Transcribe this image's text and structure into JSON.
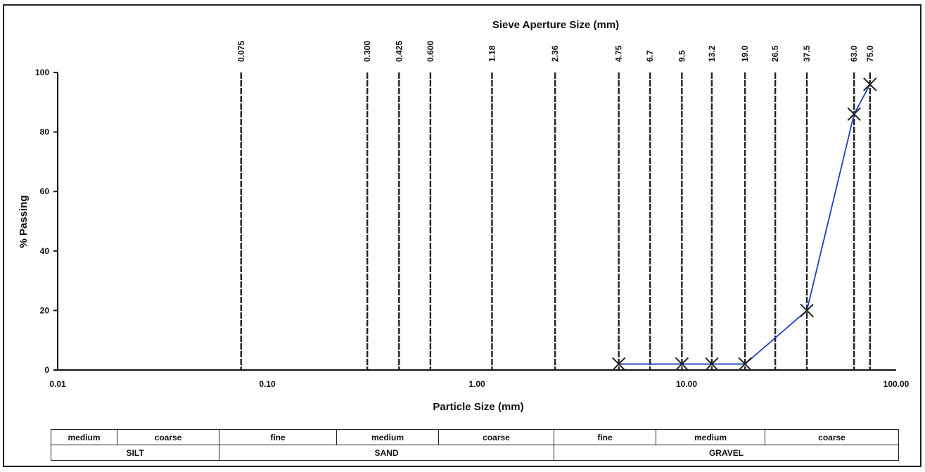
{
  "chart_data": {
    "type": "line",
    "title": "Sieve Aperture Size (mm)",
    "xlabel": "Particle Size (mm)",
    "ylabel": "% Passing",
    "xscale": "log",
    "xlim": [
      0.01,
      100
    ],
    "ylim": [
      0,
      100
    ],
    "x_tick_values": [
      0.01,
      0.1,
      1,
      10,
      100
    ],
    "x_tick_labels": [
      "0.01",
      "0.10",
      "1.00",
      "10.00",
      "100.00"
    ],
    "y_ticks": [
      0,
      20,
      40,
      60,
      80,
      100
    ],
    "y_tick_labels": [
      "0",
      "20",
      "40",
      "60",
      "80",
      "100"
    ],
    "grid": false,
    "sieve_sizes": [
      0.075,
      0.3,
      0.425,
      0.6,
      1.18,
      2.36,
      4.75,
      6.7,
      9.5,
      13.2,
      19.0,
      26.5,
      37.5,
      63.0,
      75.0
    ],
    "sieve_labels": [
      "0.075",
      "0.300",
      "0.425",
      "0.600",
      "1.18",
      "2.36",
      "4.75",
      "6.7",
      "9.5",
      "13.2",
      "19.0",
      "26.5",
      "37.5",
      "63.0",
      "75.0"
    ],
    "series": [
      {
        "color": "#1f3fbf",
        "marker": "x",
        "x": [
          4.75,
          9.5,
          13.2,
          19.0,
          37.5,
          63.0,
          75.0
        ],
        "y": [
          2,
          2,
          2,
          2,
          20,
          86,
          96
        ]
      }
    ]
  },
  "classification": {
    "sub_row": [
      {
        "label": "medium"
      },
      {
        "label": "coarse"
      },
      {
        "label": "fine"
      },
      {
        "label": "medium"
      },
      {
        "label": "coarse"
      },
      {
        "label": "fine"
      },
      {
        "label": "medium"
      },
      {
        "label": "coarse"
      }
    ],
    "main_row": [
      {
        "label": "SILT"
      },
      {
        "label": "SAND"
      },
      {
        "label": "GRAVEL"
      }
    ]
  },
  "colors": {
    "line": "#1f3fbf",
    "sieve_line": "#222222",
    "axis": "#111111"
  }
}
